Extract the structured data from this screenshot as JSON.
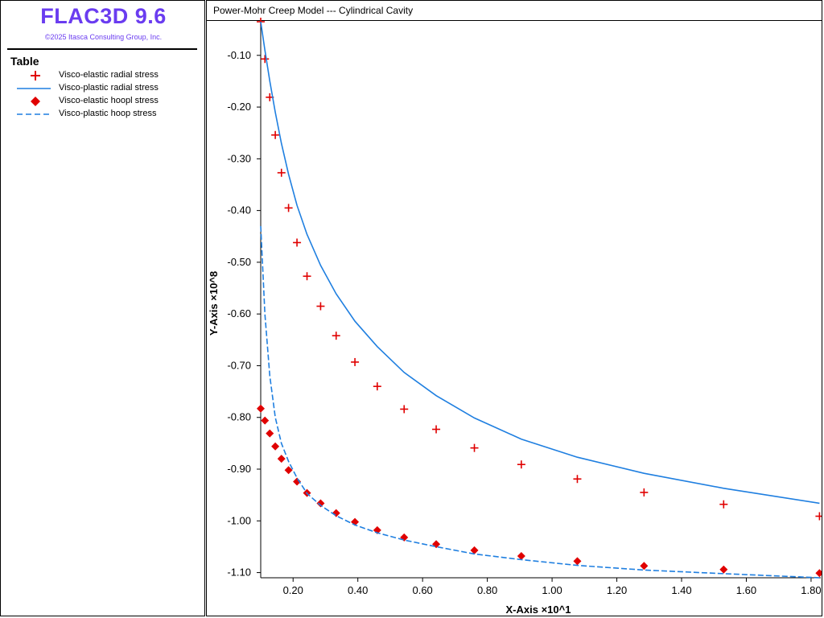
{
  "app": {
    "title": "FLAC3D 9.6",
    "copyright": "©2025 Itasca Consulting Group, Inc."
  },
  "legend": {
    "title": "Table",
    "items": [
      {
        "label": "Visco-elastic radial stress",
        "symbol": "plus",
        "color": "#e00000"
      },
      {
        "label": "Visco-plastic radial stress",
        "symbol": "solid-line",
        "color": "#1f7fe0"
      },
      {
        "label": "Visco-elastic hoopl stress",
        "symbol": "diamond",
        "color": "#e00000"
      },
      {
        "label": "Visco-plastic hoop stress",
        "symbol": "dashed-line",
        "color": "#1f7fe0"
      }
    ]
  },
  "chart_data": {
    "type": "scatter",
    "title": "Power-Mohr Creep Model --- Cylindrical Cavity",
    "xlabel": "X-Axis ×10^1",
    "ylabel": "Y-Axis ×10^8",
    "xlim": [
      0.1,
      1.83
    ],
    "ylim": [
      -1.11,
      -0.035
    ],
    "x_ticks": [
      "0.20",
      "0.40",
      "0.60",
      "0.80",
      "1.00",
      "1.20",
      "1.40",
      "1.60",
      "1.80"
    ],
    "y_ticks": [
      "-0.10",
      "-0.20",
      "-0.30",
      "-0.40",
      "-0.50",
      "-0.60",
      "-0.70",
      "-0.80",
      "-0.90",
      "-1.00",
      "-1.10"
    ],
    "grid": false,
    "series": [
      {
        "name": "Visco-elastic radial stress",
        "style": "plus",
        "color": "#e00000",
        "x": [
          0.1,
          0.113,
          0.128,
          0.145,
          0.164,
          0.186,
          0.212,
          0.243,
          0.285,
          0.333,
          0.391,
          0.46,
          0.543,
          0.642,
          0.76,
          0.905,
          1.078,
          1.284,
          1.53,
          1.826
        ],
        "y": [
          -0.035,
          -0.107,
          -0.181,
          -0.254,
          -0.327,
          -0.395,
          -0.462,
          -0.527,
          -0.585,
          -0.642,
          -0.693,
          -0.74,
          -0.784,
          -0.823,
          -0.859,
          -0.891,
          -0.919,
          -0.945,
          -0.968,
          -0.991
        ]
      },
      {
        "name": "Visco-plastic radial stress",
        "style": "solid-line",
        "color": "#1f7fe0",
        "x": [
          0.1,
          0.113,
          0.128,
          0.145,
          0.164,
          0.186,
          0.212,
          0.243,
          0.285,
          0.333,
          0.391,
          0.46,
          0.543,
          0.642,
          0.76,
          0.905,
          1.078,
          1.284,
          1.53,
          1.826
        ],
        "y": [
          -0.035,
          -0.09,
          -0.15,
          -0.21,
          -0.27,
          -0.33,
          -0.39,
          -0.446,
          -0.506,
          -0.561,
          -0.614,
          -0.663,
          -0.713,
          -0.758,
          -0.801,
          -0.842,
          -0.877,
          -0.908,
          -0.937,
          -0.966
        ]
      },
      {
        "name": "Visco-elastic hoopl stress",
        "style": "diamond",
        "color": "#e00000",
        "x": [
          0.1,
          0.113,
          0.128,
          0.145,
          0.164,
          0.186,
          0.212,
          0.243,
          0.285,
          0.333,
          0.391,
          0.46,
          0.543,
          0.642,
          0.76,
          0.905,
          1.078,
          1.284,
          1.53,
          1.826
        ],
        "y": [
          -0.783,
          -0.806,
          -0.831,
          -0.856,
          -0.88,
          -0.902,
          -0.924,
          -0.946,
          -0.966,
          -0.985,
          -1.002,
          -1.018,
          -1.032,
          -1.045,
          -1.057,
          -1.068,
          -1.078,
          -1.087,
          -1.094,
          -1.101
        ]
      },
      {
        "name": "Visco-plastic hoop stress",
        "style": "dashed-line",
        "color": "#1f7fe0",
        "x": [
          0.1,
          0.113,
          0.128,
          0.145,
          0.164,
          0.186,
          0.212,
          0.243,
          0.285,
          0.333,
          0.391,
          0.46,
          0.543,
          0.642,
          0.76,
          0.905,
          1.078,
          1.284,
          1.53,
          1.826
        ],
        "y": [
          -0.43,
          -0.6,
          -0.72,
          -0.8,
          -0.85,
          -0.885,
          -0.917,
          -0.947,
          -0.97,
          -0.99,
          -1.008,
          -1.023,
          -1.037,
          -1.05,
          -1.064,
          -1.075,
          -1.086,
          -1.095,
          -1.102,
          -1.11
        ]
      }
    ]
  }
}
